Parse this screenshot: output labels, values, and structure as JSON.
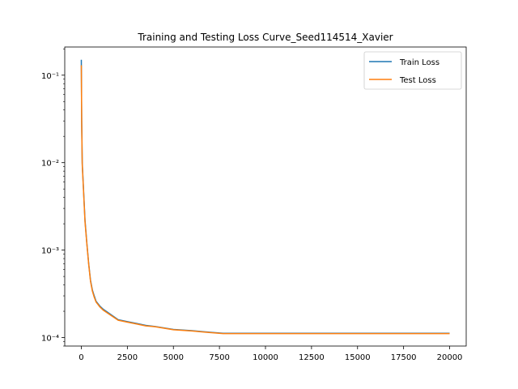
{
  "chart_data": {
    "type": "line",
    "title": "Training and Testing Loss Curve_Seed114514_Xavier",
    "xlabel": "",
    "ylabel": "",
    "xlim": [
      -900,
      20900
    ],
    "ylim": [
      8e-05,
      0.21
    ],
    "yscale": "log",
    "xticks": [
      0,
      2500,
      5000,
      7500,
      10000,
      12500,
      15000,
      17500,
      20000
    ],
    "xtick_labels": [
      "0",
      "2500",
      "5000",
      "7500",
      "10000",
      "12500",
      "15000",
      "17500",
      "20000"
    ],
    "yticks": [
      0.0001,
      0.001,
      0.01,
      0.1
    ],
    "ytick_labels": [
      "10⁻⁴",
      "10⁻³",
      "10⁻²",
      "10⁻¹"
    ],
    "grid": false,
    "legend_position": "top-right",
    "series": [
      {
        "name": "Train Loss",
        "color": "#1f77b4",
        "x": [
          0,
          20,
          50,
          100,
          200,
          300,
          400,
          500,
          600,
          700,
          800,
          900,
          1000,
          1200,
          1500,
          2000,
          2500,
          3000,
          3500,
          4000,
          5000,
          6000,
          7000,
          7700,
          8000,
          10000,
          12500,
          15000,
          17500,
          20000
        ],
        "y": [
          0.15,
          0.03,
          0.01,
          0.006,
          0.0022,
          0.0012,
          0.0007,
          0.00045,
          0.00035,
          0.0003,
          0.00026,
          0.000245,
          0.00023,
          0.00021,
          0.00019,
          0.00016,
          0.000152,
          0.000145,
          0.000138,
          0.000134,
          0.000124,
          0.00012,
          0.000115,
          0.000112,
          0.000112,
          0.000112,
          0.000112,
          0.000112,
          0.000112,
          0.000112
        ]
      },
      {
        "name": "Test Loss",
        "color": "#ff7f0e",
        "x": [
          0,
          20,
          50,
          100,
          200,
          300,
          400,
          500,
          600,
          700,
          800,
          900,
          1000,
          1200,
          1500,
          2000,
          2500,
          3000,
          3500,
          4000,
          5000,
          6000,
          7000,
          7700,
          8000,
          10000,
          12500,
          15000,
          17500,
          20000
        ],
        "y": [
          0.13,
          0.028,
          0.0095,
          0.0058,
          0.0021,
          0.00118,
          0.00069,
          0.00044,
          0.00034,
          0.00029,
          0.000255,
          0.00024,
          0.000225,
          0.000205,
          0.000186,
          0.000158,
          0.00015,
          0.000143,
          0.000136,
          0.000133,
          0.000123,
          0.000119,
          0.000114,
          0.000111,
          0.000111,
          0.000111,
          0.000111,
          0.000111,
          0.000111,
          0.000111
        ]
      }
    ]
  }
}
